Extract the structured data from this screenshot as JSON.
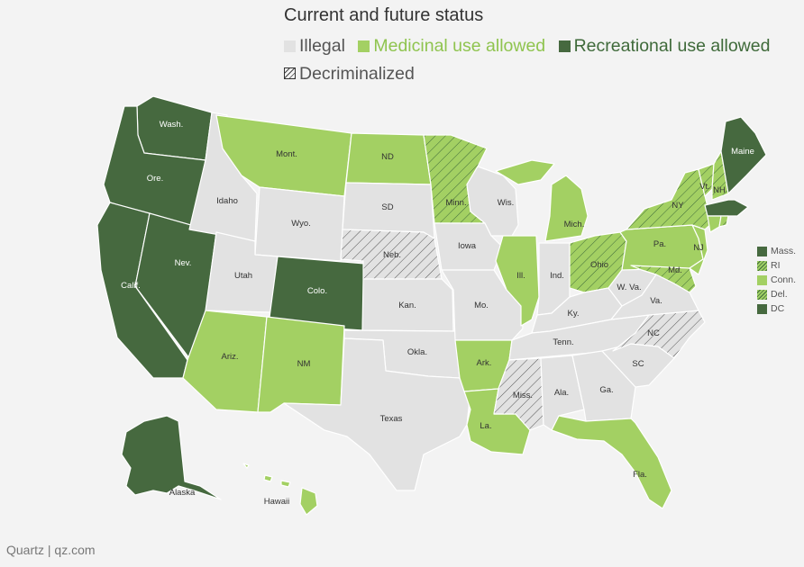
{
  "title": "Current and future status",
  "legend": [
    {
      "label": "Illegal",
      "color": "#e2e2e2",
      "text_color": "#555555",
      "hatch": false
    },
    {
      "label": "Medicinal use allowed",
      "color": "#a3d063",
      "text_color": "#8fc44f",
      "hatch": false
    },
    {
      "label": "Recreational use allowed",
      "color": "#46693f",
      "text_color": "#3f6a3a",
      "hatch": false
    },
    {
      "label": "Decriminalized",
      "color": "#e2e2e2",
      "text_color": "#555555",
      "hatch": true
    }
  ],
  "colors": {
    "illegal": "#e2e2e2",
    "medicinal": "#a3d063",
    "recreational": "#46693f",
    "hatch_lines": "#3f6a3a",
    "background": "#f3f3f3"
  },
  "states": {
    "wash": {
      "name": "Wash.",
      "status": "recreational"
    },
    "ore": {
      "name": "Ore.",
      "status": "recreational"
    },
    "calif": {
      "name": "Calif.",
      "status": "recreational"
    },
    "nev": {
      "name": "Nev.",
      "status": "recreational"
    },
    "idaho": {
      "name": "Idaho",
      "status": "illegal"
    },
    "mont": {
      "name": "Mont.",
      "status": "medicinal"
    },
    "wyo": {
      "name": "Wyo.",
      "status": "illegal"
    },
    "utah": {
      "name": "Utah",
      "status": "illegal"
    },
    "colo": {
      "name": "Colo.",
      "status": "recreational"
    },
    "ariz": {
      "name": "Ariz.",
      "status": "medicinal"
    },
    "nm": {
      "name": "NM",
      "status": "medicinal"
    },
    "nd": {
      "name": "ND",
      "status": "medicinal"
    },
    "sd": {
      "name": "SD",
      "status": "illegal"
    },
    "neb": {
      "name": "Neb.",
      "status": "decriminalized"
    },
    "kan": {
      "name": "Kan.",
      "status": "illegal"
    },
    "okla": {
      "name": "Okla.",
      "status": "illegal"
    },
    "texas": {
      "name": "Texas",
      "status": "illegal"
    },
    "minn": {
      "name": "Minn.",
      "status": "medicinal_decriminalized"
    },
    "iowa": {
      "name": "Iowa",
      "status": "illegal"
    },
    "mo": {
      "name": "Mo.",
      "status": "illegal"
    },
    "ark": {
      "name": "Ark.",
      "status": "medicinal"
    },
    "la": {
      "name": "La.",
      "status": "medicinal"
    },
    "wis": {
      "name": "Wis.",
      "status": "illegal"
    },
    "ill": {
      "name": "Ill.",
      "status": "medicinal"
    },
    "mich": {
      "name": "Mich.",
      "status": "medicinal"
    },
    "ind": {
      "name": "Ind.",
      "status": "illegal"
    },
    "ohio": {
      "name": "Ohio",
      "status": "medicinal_decriminalized"
    },
    "ky": {
      "name": "Ky.",
      "status": "illegal"
    },
    "tenn": {
      "name": "Tenn.",
      "status": "illegal"
    },
    "miss": {
      "name": "Miss.",
      "status": "decriminalized"
    },
    "ala": {
      "name": "Ala.",
      "status": "illegal"
    },
    "ga": {
      "name": "Ga.",
      "status": "illegal"
    },
    "fla": {
      "name": "Fla.",
      "status": "medicinal"
    },
    "sc": {
      "name": "SC",
      "status": "illegal"
    },
    "nc": {
      "name": "NC",
      "status": "decriminalized"
    },
    "va": {
      "name": "Va.",
      "status": "illegal"
    },
    "wva": {
      "name": "W. Va.",
      "status": "illegal"
    },
    "md": {
      "name": "Md.",
      "status": "medicinal_decriminalized"
    },
    "pa": {
      "name": "Pa.",
      "status": "medicinal"
    },
    "ny": {
      "name": "NY",
      "status": "medicinal_decriminalized"
    },
    "nj": {
      "name": "NJ",
      "status": "medicinal"
    },
    "vt": {
      "name": "Vt.",
      "status": "medicinal_decriminalized"
    },
    "nh": {
      "name": "NH",
      "status": "medicinal_decriminalized"
    },
    "maine": {
      "name": "Maine",
      "status": "recreational"
    },
    "mass": {
      "name": "Mass.",
      "status": "recreational"
    },
    "alaska": {
      "name": "Alaska",
      "status": "recreational"
    },
    "hawaii": {
      "name": "Hawaii",
      "status": "medicinal"
    }
  },
  "northeast_legend": [
    {
      "label": "Mass.",
      "status": "recreational"
    },
    {
      "label": "RI",
      "status": "medicinal_decriminalized"
    },
    {
      "label": "Conn.",
      "status": "medicinal"
    },
    {
      "label": "Del.",
      "status": "medicinal_decriminalized"
    },
    {
      "label": "DC",
      "status": "recreational"
    }
  ],
  "credit": "Quartz | qz.com"
}
